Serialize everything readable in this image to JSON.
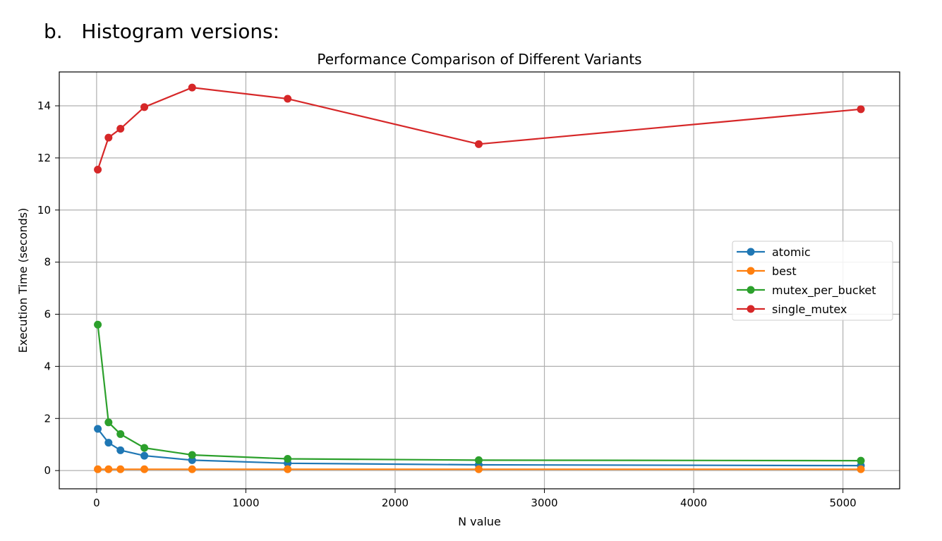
{
  "page": {
    "heading_marker": "b.",
    "heading_text": "Histogram versions:"
  },
  "chart_data": {
    "type": "line",
    "title": "Performance Comparison of Different Variants",
    "xlabel": "N value",
    "ylabel": "Execution Time (seconds)",
    "xlim": [
      -250,
      5380
    ],
    "ylim": [
      -0.7,
      15.3
    ],
    "xticks": [
      0,
      1000,
      2000,
      3000,
      4000,
      5000
    ],
    "yticks": [
      0,
      2,
      4,
      6,
      8,
      10,
      12,
      14
    ],
    "grid": true,
    "legend_position": "center-right",
    "x": [
      8,
      80,
      160,
      320,
      640,
      1280,
      2560,
      5120
    ],
    "series": [
      {
        "name": "atomic",
        "color": "#1f77b4",
        "values": [
          1.6,
          1.07,
          0.78,
          0.57,
          0.4,
          0.28,
          0.22,
          0.19
        ]
      },
      {
        "name": "best",
        "color": "#ff7f0e",
        "values": [
          0.05,
          0.05,
          0.05,
          0.05,
          0.05,
          0.05,
          0.05,
          0.05
        ]
      },
      {
        "name": "mutex_per_bucket",
        "color": "#2ca02c",
        "values": [
          5.6,
          1.85,
          1.4,
          0.87,
          0.6,
          0.45,
          0.4,
          0.38
        ]
      },
      {
        "name": "single_mutex",
        "color": "#d62728",
        "values": [
          11.55,
          12.78,
          13.12,
          13.95,
          14.7,
          14.27,
          12.53,
          13.87
        ]
      }
    ]
  }
}
